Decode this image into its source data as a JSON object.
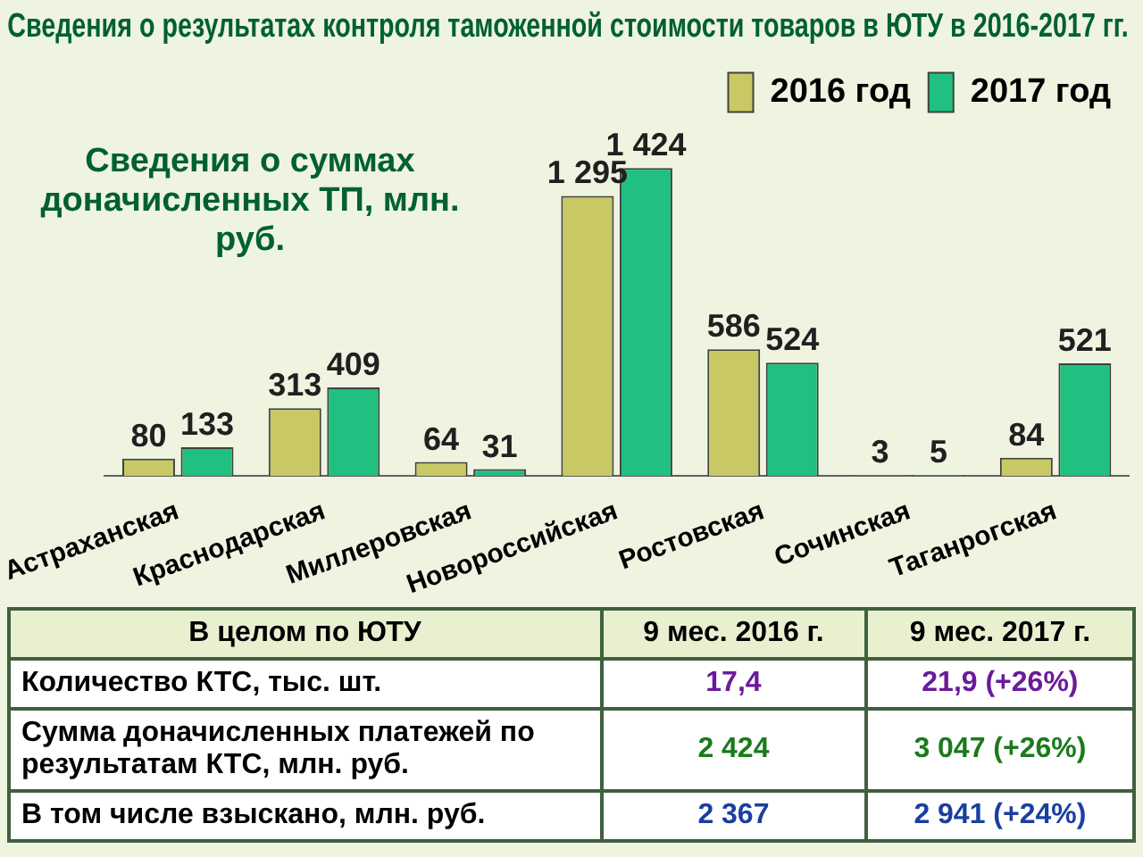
{
  "chart_data": [
    {
      "type": "bar",
      "title": "Сведения о результатах контроля таможенной стоимости товаров в ЮТУ в 2016-2017 гг.",
      "subtitle": "Сведения о суммах доначисленных ТП, млн. руб.",
      "categories": [
        "Астраханская",
        "Краснодарская",
        "Миллеровская",
        "Новороссийская",
        "Ростовская",
        "Сочинская",
        "Таганрогская"
      ],
      "series": [
        {
          "name": "2016 год",
          "color": "#c8c864",
          "values": [
            80,
            313,
            64,
            1295,
            586,
            3,
            84
          ],
          "value_labels": [
            "80",
            "313",
            "64",
            "1 295",
            "586",
            "3",
            "84"
          ]
        },
        {
          "name": "2017 год",
          "color": "#20c080",
          "values": [
            133,
            409,
            31,
            1424,
            524,
            5,
            521
          ],
          "value_labels": [
            "133",
            "409",
            "31",
            "1 424",
            "524",
            "5",
            "521"
          ]
        }
      ],
      "legend": "top right",
      "grid": false
    },
    {
      "type": "other",
      "annotations": [
        "В целом по ЮТУ",
        "9 мес. 2016 г.",
        "9 мес. 2017 г.",
        "Количество КТС, тыс. шт.",
        "17,4",
        "21,9 (+26%)",
        "Сумма доначисленных платежей по результатам КТС, млн. руб.",
        "2 424",
        "3 047 (+26%)",
        "В том числе взыскано, млн. руб.",
        "2 367",
        "2 941 (+24%)"
      ]
    }
  ]
}
